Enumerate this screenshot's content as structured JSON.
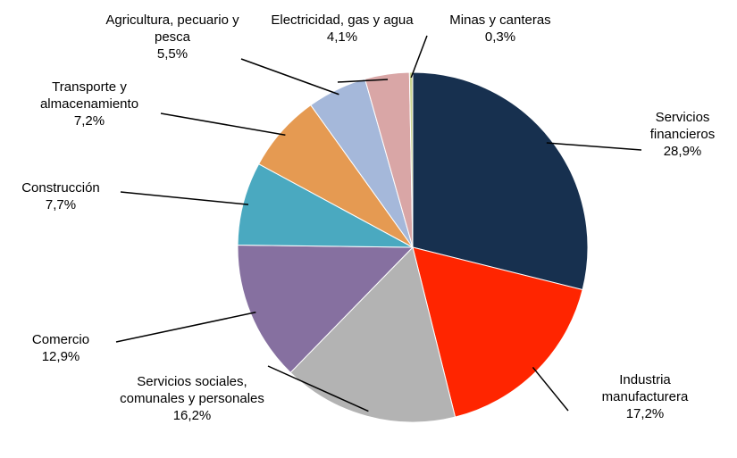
{
  "chart_data": {
    "type": "pie",
    "categories": [
      "Servicios financieros",
      "Industria manufacturera",
      "Servicios sociales, comunales y personales",
      "Comercio",
      "Construcción",
      "Transporte y almacenamiento",
      "Agricultura, pecuario y pesca",
      "Electricidad, gas y agua",
      "Minas y canteras"
    ],
    "values": [
      28.9,
      17.2,
      16.2,
      12.9,
      7.7,
      7.2,
      5.5,
      4.1,
      0.3
    ],
    "value_labels": [
      "28,9%",
      "17,2%",
      "16,2%",
      "12,9%",
      "7,7%",
      "7,2%",
      "5,5%",
      "4,1%",
      "0,3%"
    ],
    "colors": [
      "#17304f",
      "#ff2500",
      "#b3b3b3",
      "#8670a0",
      "#4aa9c0",
      "#e59a52",
      "#a5b8da",
      "#d9a6a6",
      "#c9d38f"
    ]
  }
}
